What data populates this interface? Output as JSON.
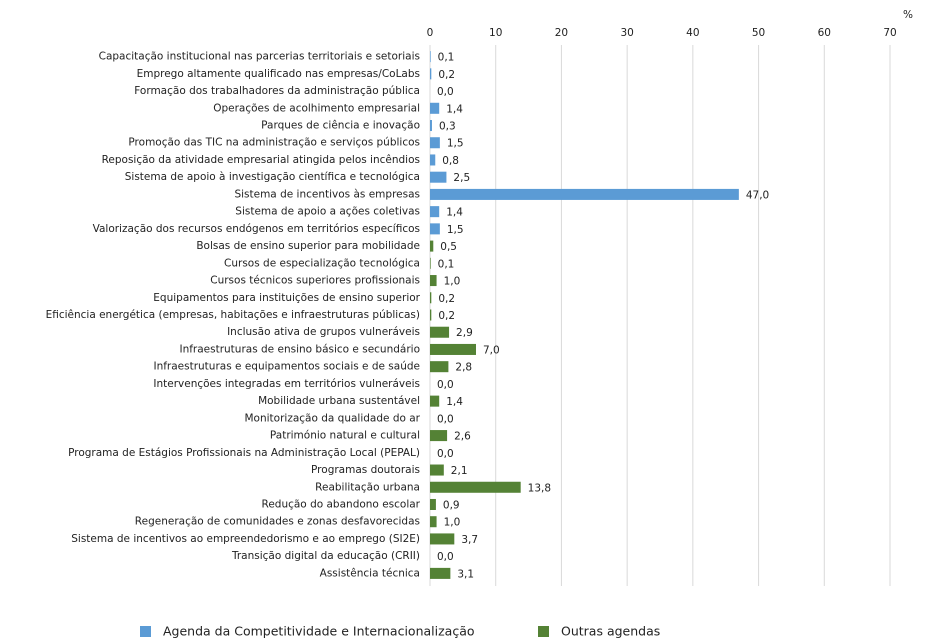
{
  "chart_data": {
    "type": "hbar",
    "unit_label": "%",
    "categories": [
      "Capacitação institucional nas parcerias territoriais e setoriais",
      "Emprego altamente qualificado nas empresas/CoLabs",
      "Formação dos trabalhadores da administração pública",
      "Operações de acolhimento empresarial",
      "Parques de ciência e inovação",
      "Promoção das TIC na administração e serviços públicos",
      "Reposição da atividade empresarial atingida pelos incêndios",
      "Sistema de apoio à investigação científica e tecnológica",
      "Sistema de incentivos às empresas",
      "Sistema de apoio a ações coletivas",
      "Valorização dos recursos endógenos em territórios específicos",
      "Bolsas de ensino superior para mobilidade",
      "Cursos de especialização tecnológica",
      "Cursos técnicos superiores profissionais",
      "Equipamentos para instituições de ensino superior",
      "Eficiência energética (empresas, habitações e infraestruturas públicas)",
      "Inclusão ativa de grupos vulneráveis",
      "Infraestruturas de ensino básico e secundário",
      "Infraestruturas e equipamentos sociais e de saúde",
      "Intervenções integradas em territórios vulneráveis",
      "Mobilidade urbana sustentável",
      "Monitorização da qualidade do ar",
      "Património natural e cultural",
      "Programa de Estágios Profissionais na Administração Local (PEPAL)",
      "Programas doutorais",
      "Reabilitação urbana",
      "Redução do abandono escolar",
      "Regeneração de comunidades e zonas desfavorecidas",
      "Sistema de incentivos ao empreendedorismo e ao emprego (SI2E)",
      "Transição digital da educação (CRII)",
      "Assistência técnica"
    ],
    "series": [
      {
        "name": "Agenda da Competitividade e Internacionalização",
        "color": "#5b9bd5",
        "values": [
          0.1,
          0.2,
          0.0,
          1.4,
          0.3,
          1.5,
          0.8,
          2.5,
          47.0,
          1.4,
          1.5,
          null,
          null,
          null,
          null,
          null,
          null,
          null,
          null,
          null,
          null,
          null,
          null,
          null,
          null,
          null,
          null,
          null,
          null,
          null,
          null
        ],
        "value_labels": [
          "0,1",
          "0,2",
          "0,0",
          "1,4",
          "0,3",
          "1,5",
          "0,8",
          "2,5",
          "47,0",
          "1,4",
          "1,5",
          null,
          null,
          null,
          null,
          null,
          null,
          null,
          null,
          null,
          null,
          null,
          null,
          null,
          null,
          null,
          null,
          null,
          null,
          null,
          null
        ]
      },
      {
        "name": "Outras agendas",
        "color": "#548235",
        "values": [
          null,
          null,
          null,
          null,
          null,
          null,
          null,
          null,
          null,
          null,
          null,
          0.5,
          0.1,
          1.0,
          0.2,
          0.2,
          2.9,
          7.0,
          2.8,
          0.0,
          1.4,
          0.0,
          2.6,
          0.0,
          2.1,
          13.8,
          0.9,
          1.0,
          3.7,
          0.0,
          3.1
        ],
        "value_labels": [
          null,
          null,
          null,
          null,
          null,
          null,
          null,
          null,
          null,
          null,
          null,
          "0,5",
          "0,1",
          "1,0",
          "0,2",
          "0,2",
          "2,9",
          "7,0",
          "2,8",
          "0,0",
          "1,4",
          "0,0",
          "2,6",
          "0,0",
          "2,1",
          "13,8",
          "0,9",
          "1,0",
          "3,7",
          "0,0",
          "3,1"
        ]
      }
    ],
    "xlim": [
      0,
      70
    ],
    "xticks": [
      0,
      10,
      20,
      30,
      40,
      50,
      60,
      70
    ],
    "grid": true,
    "legend": "bottom"
  }
}
